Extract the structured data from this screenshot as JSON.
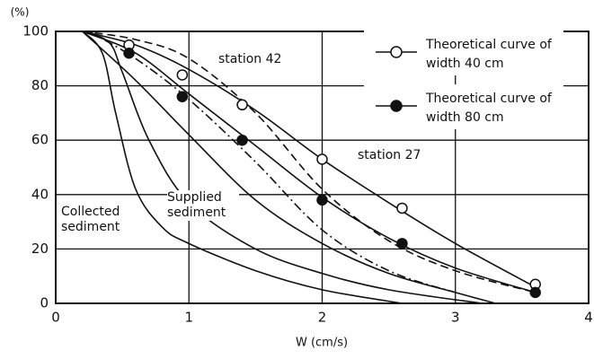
{
  "chart_data": {
    "type": "line",
    "y_label": "(%)",
    "x_label": "W (cm/s)",
    "xlim": [
      0,
      4
    ],
    "xticks": [
      0,
      1,
      2,
      3,
      4
    ],
    "ylim": [
      0,
      100
    ],
    "yticks": [
      0,
      20,
      40,
      60,
      80,
      100
    ],
    "grid": true,
    "legend_position": "top-right",
    "series": [
      {
        "name": "Theoretical curve of width 40 cm",
        "marker": "open",
        "color": "#111",
        "x": [
          0.55,
          0.95,
          1.4,
          2,
          2.6,
          3.6
        ],
        "values": [
          95,
          84,
          73,
          53,
          35,
          7
        ]
      },
      {
        "name": "Theoretical curve of width 80 cm",
        "marker": "filled",
        "color": "#111",
        "x": [
          0.55,
          0.95,
          1.4,
          2,
          2.6,
          3.6
        ],
        "values": [
          92,
          76,
          60,
          38,
          22,
          4
        ]
      }
    ],
    "lines": [
      {
        "dash": "solid",
        "x": [
          0.2,
          0.6,
          1,
          1.5,
          2,
          2.5,
          3,
          3.6
        ],
        "values": [
          100,
          95,
          86,
          71,
          53,
          37,
          22,
          6
        ]
      },
      {
        "dash": "solid",
        "x": [
          0.2,
          0.6,
          1,
          1.5,
          2,
          2.5,
          3,
          3.6
        ],
        "values": [
          100,
          92,
          77,
          58,
          39,
          24,
          13,
          4
        ]
      },
      {
        "dash": "dashed",
        "label": "station 42",
        "x": [
          0.2,
          0.6,
          1,
          1.5,
          2,
          2.5,
          3,
          3.6
        ],
        "values": [
          100,
          97,
          90,
          70,
          42,
          23,
          12,
          4
        ]
      },
      {
        "dash": "dashdot",
        "label": "station 27",
        "x": [
          0.25,
          0.6,
          1,
          1.5,
          2,
          2.5,
          3
        ],
        "values": [
          100,
          90,
          75,
          52,
          27,
          12,
          4
        ]
      },
      {
        "dash": "solid",
        "label": "Supplied sediment",
        "x": [
          0.2,
          0.6,
          1,
          1.5,
          2,
          2.5,
          3,
          3.3
        ],
        "values": [
          100,
          82,
          62,
          38,
          22,
          11,
          4,
          0
        ]
      },
      {
        "dash": "solid",
        "label": "Collected sediment",
        "x": [
          0.2,
          0.4,
          0.5,
          0.7,
          1,
          1.5,
          2,
          2.5,
          3.2
        ],
        "values": [
          100,
          96,
          85,
          60,
          37,
          20,
          11,
          5,
          0
        ]
      },
      {
        "dash": "solid",
        "x": [
          0.2,
          0.35,
          0.45,
          0.6,
          0.8,
          1,
          1.5,
          2,
          2.6
        ],
        "values": [
          100,
          92,
          70,
          42,
          28,
          22,
          12,
          5,
          0
        ]
      }
    ]
  }
}
